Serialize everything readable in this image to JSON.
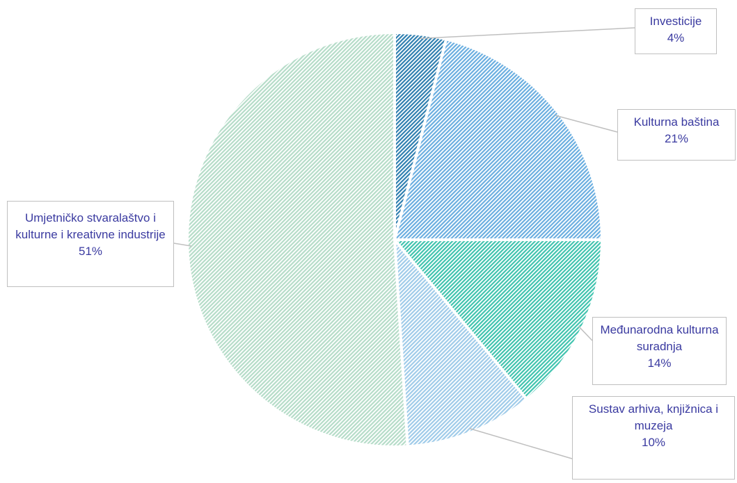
{
  "chart_data": {
    "type": "pie",
    "title": "",
    "slices": [
      {
        "label": "Investicije",
        "value": 4,
        "value_label": "4%",
        "color": "#2f7fb0"
      },
      {
        "label": "Kulturna baština",
        "value": 21,
        "value_label": "21%",
        "color": "#6aaee0"
      },
      {
        "label": "Međunarodna kulturna suradnja",
        "value": 14,
        "value_label": "14%",
        "color": "#3fc3ae"
      },
      {
        "label": "Sustav arhiva, knjižnica i muzeja",
        "value": 10,
        "value_label": "10%",
        "color": "#9fcbe9"
      },
      {
        "label": "Umjetničko stvaralaštvo i kulturne i kreativne industrije",
        "value": 51,
        "value_label": "51%",
        "color": "#b5dcc8"
      }
    ],
    "label_color": "#3a3aa0",
    "legend": "none"
  }
}
